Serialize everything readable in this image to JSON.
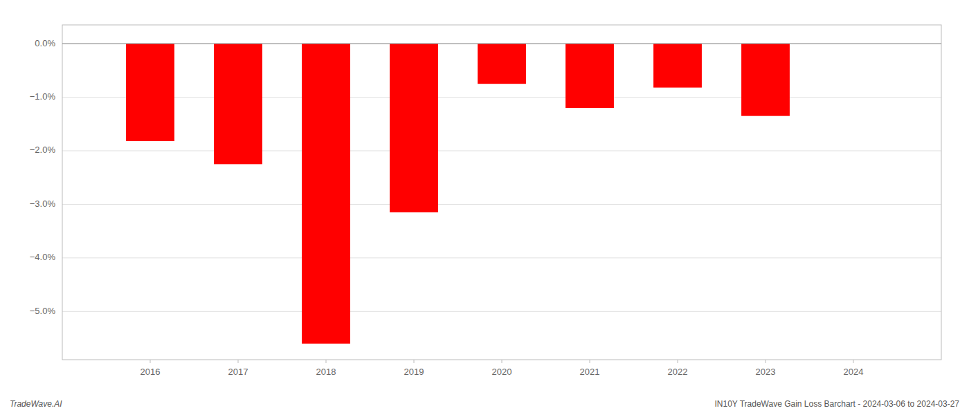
{
  "chart_data": {
    "type": "bar",
    "x": [
      2016,
      2017,
      2018,
      2019,
      2020,
      2021,
      2022,
      2023
    ],
    "values": [
      -1.82,
      -2.25,
      -5.6,
      -3.15,
      -0.75,
      -1.2,
      -0.82,
      -1.35
    ],
    "color": "#ff0000",
    "xlim": [
      2015.0,
      2025.0
    ],
    "xticks": [
      2016,
      2017,
      2018,
      2019,
      2020,
      2021,
      2022,
      2023,
      2024
    ],
    "ylim": [
      -5.9,
      0.35
    ],
    "yticks": [
      {
        "value": 0.0,
        "label": "0.0%"
      },
      {
        "value": -1.0,
        "label": "−1.0%"
      },
      {
        "value": -2.0,
        "label": "−2.0%"
      },
      {
        "value": -3.0,
        "label": "−3.0%"
      },
      {
        "value": -4.0,
        "label": "−4.0%"
      },
      {
        "value": -5.0,
        "label": "−5.0%"
      }
    ],
    "grid": true,
    "annotations": [
      "TradeWave.AI",
      "IN10Y TradeWave Gain Loss Barchart - 2024-03-06 to 2024-03-27"
    ]
  }
}
